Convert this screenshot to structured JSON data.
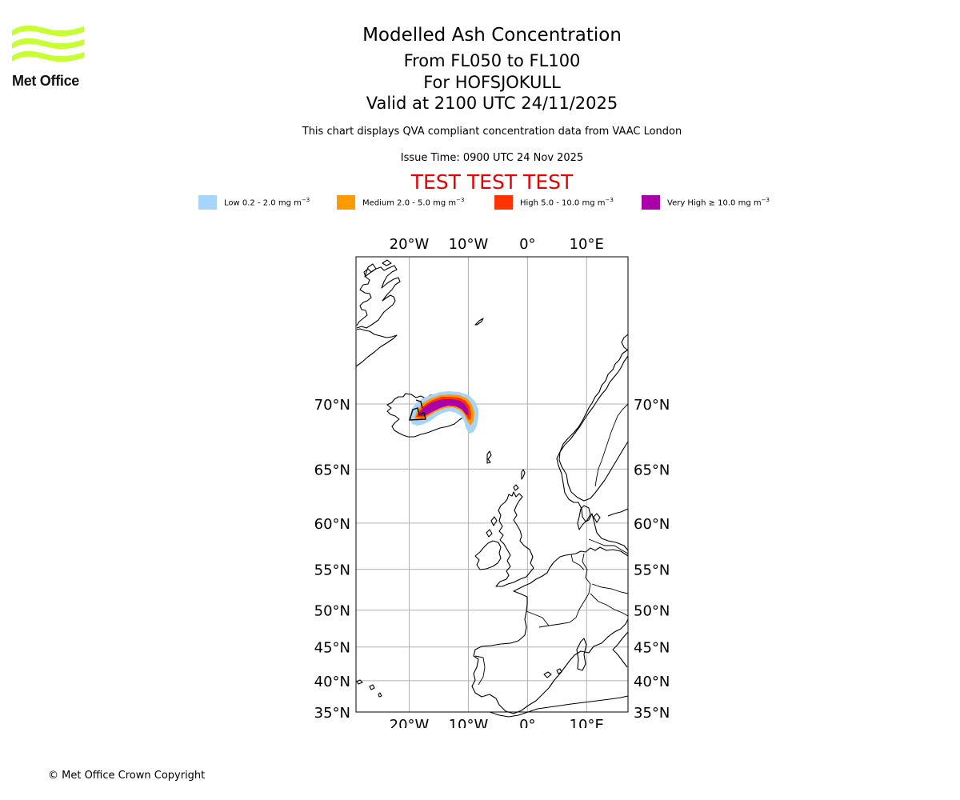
{
  "header": {
    "logo_text": "Met Office",
    "title": "Modelled Ash Concentration",
    "level_range": "From FL050 to FL100",
    "volcano": "For HOFSJOKULL",
    "valid_time": "Valid at 2100 UTC 24/11/2025",
    "description": "This chart displays QVA compliant concentration data from VAAC London",
    "issue_time": "Issue Time: 0900 UTC 24 Nov 2025",
    "test_banner": "TEST TEST TEST"
  },
  "legend": [
    {
      "label": "Low 0.2 - 2.0 mg m",
      "exp": "−3",
      "color": "#a6d4fb"
    },
    {
      "label": "Medium 2.0 - 5.0 mg m",
      "exp": "−3",
      "color": "#ff9900"
    },
    {
      "label": "High 5.0 - 10.0 mg m",
      "exp": "−3",
      "color": "#ff3300"
    },
    {
      "label": "Very High  ≥  10.0 mg m",
      "exp": "−3",
      "color": "#aa00aa"
    }
  ],
  "map": {
    "lon_range": [
      -29,
      17
    ],
    "lat_range": [
      35,
      78
    ],
    "lon_ticks": [
      {
        "value": -20,
        "label": "20°W"
      },
      {
        "value": -10,
        "label": "10°W"
      },
      {
        "value": 0,
        "label": "0°"
      },
      {
        "value": 10,
        "label": "10°E"
      }
    ],
    "lat_ticks": [
      {
        "value": 70,
        "label": "70°N"
      },
      {
        "value": 65,
        "label": "65°N"
      },
      {
        "value": 60,
        "label": "60°N"
      },
      {
        "value": 55,
        "label": "55°N"
      },
      {
        "value": 50,
        "label": "50°N"
      },
      {
        "value": 45,
        "label": "45°N"
      },
      {
        "value": 40,
        "label": "40°N"
      },
      {
        "value": 35,
        "label": "35°N"
      }
    ],
    "grid_color": "#b0b0b0"
  },
  "footer": {
    "copyright": "© Met Office Crown Copyright"
  }
}
